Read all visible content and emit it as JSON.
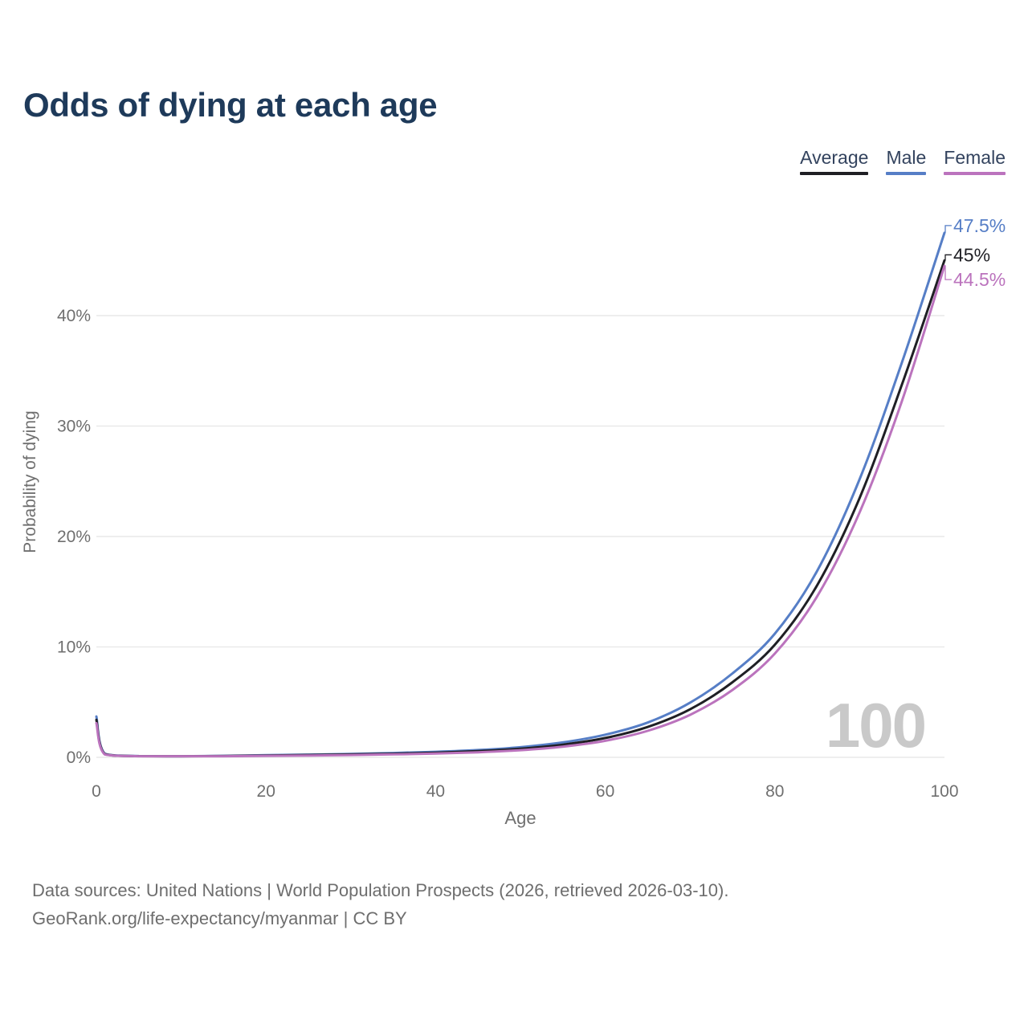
{
  "title": "Odds of dying at each age",
  "legend": {
    "items": [
      {
        "label": "Average",
        "color": "#1f1f24"
      },
      {
        "label": "Male",
        "color": "#567ec6"
      },
      {
        "label": "Female",
        "color": "#bb73bd"
      }
    ]
  },
  "watermark": "100",
  "y_axis_title": "Probability of dying",
  "x_axis_title": "Age",
  "source": {
    "line1": "Data sources: United Nations | World Population Prospects (2026, retrieved 2026-03-10).",
    "line2": "GeoRank.org/life-expectancy/myanmar | CC BY"
  },
  "colors": {
    "title": "#1e3a5a",
    "grid": "#e9e9e9",
    "tick_text": "#6f6f6f",
    "watermark": "#c9c9c9",
    "average": "#1f1f24",
    "male": "#567ec6",
    "female": "#bb73bd"
  },
  "chart_data": {
    "type": "line",
    "title": "Odds of dying at each age",
    "xlabel": "Age",
    "ylabel": "Probability of dying",
    "xlim": [
      0,
      100
    ],
    "ylim": [
      0,
      47.5
    ],
    "xticks": [
      0,
      20,
      40,
      60,
      80,
      100
    ],
    "ytick_values": [
      0,
      10,
      20,
      30,
      40
    ],
    "ytick_labels": [
      "0%",
      "10%",
      "20%",
      "30%",
      "40%"
    ],
    "grid": true,
    "legend_position": "top-right",
    "x": [
      0,
      1,
      5,
      10,
      15,
      20,
      25,
      30,
      35,
      40,
      45,
      50,
      55,
      60,
      65,
      70,
      75,
      80,
      85,
      90,
      95,
      100
    ],
    "series": [
      {
        "name": "Male",
        "color": "#567ec6",
        "end_label": "47.5%",
        "values": [
          3.7,
          0.32,
          0.12,
          0.1,
          0.14,
          0.2,
          0.25,
          0.31,
          0.39,
          0.5,
          0.66,
          0.92,
          1.35,
          2.05,
          3.15,
          4.95,
          7.6,
          11.2,
          16.9,
          25.2,
          35.8,
          47.5
        ]
      },
      {
        "name": "Average",
        "color": "#1f1f24",
        "end_label": "45%",
        "values": [
          3.4,
          0.29,
          0.11,
          0.09,
          0.12,
          0.17,
          0.21,
          0.26,
          0.33,
          0.42,
          0.56,
          0.78,
          1.15,
          1.75,
          2.75,
          4.35,
          6.8,
          10.2,
          15.6,
          23.5,
          33.8,
          45.0
        ]
      },
      {
        "name": "Female",
        "color": "#bb73bd",
        "end_label": "44.5%",
        "values": [
          3.1,
          0.26,
          0.1,
          0.08,
          0.1,
          0.14,
          0.17,
          0.21,
          0.27,
          0.34,
          0.46,
          0.65,
          0.97,
          1.5,
          2.4,
          3.85,
          6.1,
          9.4,
          14.6,
          22.2,
          32.3,
          44.5
        ]
      }
    ]
  }
}
